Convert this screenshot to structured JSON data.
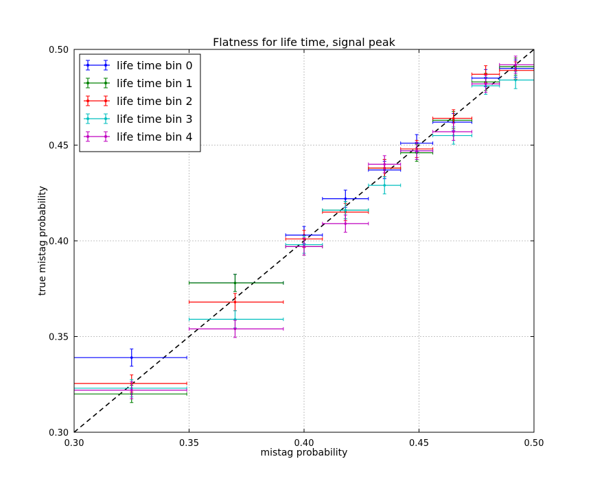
{
  "chart_data": {
    "type": "scatter",
    "title": "Flatness for life time, signal peak",
    "xlabel": "mistag probability",
    "ylabel": "true mistag probability",
    "xlim": [
      0.3,
      0.5
    ],
    "ylim": [
      0.3,
      0.5
    ],
    "xticks": [
      0.3,
      0.35,
      0.4,
      0.45,
      0.5
    ],
    "yticks": [
      0.3,
      0.35,
      0.4,
      0.45,
      0.5
    ],
    "xtick_labels": [
      "0.30",
      "0.35",
      "0.40",
      "0.45",
      "0.50"
    ],
    "ytick_labels": [
      "0.30",
      "0.35",
      "0.40",
      "0.45",
      "0.50"
    ],
    "grid": true,
    "legend_position": "top-left",
    "reference_line": {
      "style": "dashed",
      "color": "#000000",
      "from": [
        0.3,
        0.3
      ],
      "to": [
        0.5,
        0.5
      ]
    },
    "series": [
      {
        "name": "life time bin 0",
        "color": "#0000ff",
        "points": [
          {
            "x": 0.325,
            "y": 0.339,
            "xlo": 0.3,
            "xhi": 0.349,
            "yerr": 0.0045
          },
          {
            "x": 0.37,
            "y": 0.378,
            "xlo": 0.35,
            "xhi": 0.391,
            "yerr": 0.0045
          },
          {
            "x": 0.4,
            "y": 0.403,
            "xlo": 0.392,
            "xhi": 0.408,
            "yerr": 0.0045
          },
          {
            "x": 0.418,
            "y": 0.422,
            "xlo": 0.408,
            "xhi": 0.428,
            "yerr": 0.0045
          },
          {
            "x": 0.435,
            "y": 0.437,
            "xlo": 0.428,
            "xhi": 0.442,
            "yerr": 0.0045
          },
          {
            "x": 0.449,
            "y": 0.451,
            "xlo": 0.442,
            "xhi": 0.456,
            "yerr": 0.0045
          },
          {
            "x": 0.465,
            "y": 0.462,
            "xlo": 0.456,
            "xhi": 0.473,
            "yerr": 0.0045
          },
          {
            "x": 0.479,
            "y": 0.485,
            "xlo": 0.473,
            "xhi": 0.485,
            "yerr": 0.0045
          },
          {
            "x": 0.492,
            "y": 0.49,
            "xlo": 0.485,
            "xhi": 0.5,
            "yerr": 0.0045
          }
        ]
      },
      {
        "name": "life time bin 1",
        "color": "#008000",
        "points": [
          {
            "x": 0.325,
            "y": 0.32,
            "xlo": 0.3,
            "xhi": 0.349,
            "yerr": 0.0045
          },
          {
            "x": 0.37,
            "y": 0.378,
            "xlo": 0.35,
            "xhi": 0.391,
            "yerr": 0.0045
          },
          {
            "x": 0.4,
            "y": 0.397,
            "xlo": 0.392,
            "xhi": 0.408,
            "yerr": 0.0045
          },
          {
            "x": 0.418,
            "y": 0.416,
            "xlo": 0.408,
            "xhi": 0.428,
            "yerr": 0.0045
          },
          {
            "x": 0.435,
            "y": 0.438,
            "xlo": 0.428,
            "xhi": 0.442,
            "yerr": 0.0045
          },
          {
            "x": 0.449,
            "y": 0.446,
            "xlo": 0.442,
            "xhi": 0.456,
            "yerr": 0.0045
          },
          {
            "x": 0.465,
            "y": 0.463,
            "xlo": 0.456,
            "xhi": 0.473,
            "yerr": 0.0045
          },
          {
            "x": 0.479,
            "y": 0.483,
            "xlo": 0.473,
            "xhi": 0.485,
            "yerr": 0.0045
          },
          {
            "x": 0.492,
            "y": 0.491,
            "xlo": 0.485,
            "xhi": 0.5,
            "yerr": 0.0045
          }
        ]
      },
      {
        "name": "life time bin 2",
        "color": "#ff0000",
        "points": [
          {
            "x": 0.325,
            "y": 0.3255,
            "xlo": 0.3,
            "xhi": 0.349,
            "yerr": 0.0045
          },
          {
            "x": 0.37,
            "y": 0.368,
            "xlo": 0.35,
            "xhi": 0.391,
            "yerr": 0.0045
          },
          {
            "x": 0.4,
            "y": 0.401,
            "xlo": 0.392,
            "xhi": 0.408,
            "yerr": 0.0045
          },
          {
            "x": 0.418,
            "y": 0.415,
            "xlo": 0.408,
            "xhi": 0.428,
            "yerr": 0.0045
          },
          {
            "x": 0.435,
            "y": 0.438,
            "xlo": 0.428,
            "xhi": 0.442,
            "yerr": 0.0045
          },
          {
            "x": 0.449,
            "y": 0.448,
            "xlo": 0.442,
            "xhi": 0.456,
            "yerr": 0.0045
          },
          {
            "x": 0.465,
            "y": 0.464,
            "xlo": 0.456,
            "xhi": 0.473,
            "yerr": 0.0045
          },
          {
            "x": 0.479,
            "y": 0.487,
            "xlo": 0.473,
            "xhi": 0.485,
            "yerr": 0.0045
          },
          {
            "x": 0.492,
            "y": 0.489,
            "xlo": 0.485,
            "xhi": 0.5,
            "yerr": 0.0045
          }
        ]
      },
      {
        "name": "life time bin 3",
        "color": "#00bfbf",
        "points": [
          {
            "x": 0.325,
            "y": 0.323,
            "xlo": 0.3,
            "xhi": 0.349,
            "yerr": 0.0045
          },
          {
            "x": 0.37,
            "y": 0.359,
            "xlo": 0.35,
            "xhi": 0.391,
            "yerr": 0.0045
          },
          {
            "x": 0.4,
            "y": 0.398,
            "xlo": 0.392,
            "xhi": 0.408,
            "yerr": 0.0045
          },
          {
            "x": 0.418,
            "y": 0.416,
            "xlo": 0.408,
            "xhi": 0.428,
            "yerr": 0.0045
          },
          {
            "x": 0.435,
            "y": 0.429,
            "xlo": 0.428,
            "xhi": 0.442,
            "yerr": 0.0045
          },
          {
            "x": 0.449,
            "y": 0.447,
            "xlo": 0.442,
            "xhi": 0.456,
            "yerr": 0.0045
          },
          {
            "x": 0.465,
            "y": 0.455,
            "xlo": 0.456,
            "xhi": 0.473,
            "yerr": 0.0045
          },
          {
            "x": 0.479,
            "y": 0.481,
            "xlo": 0.473,
            "xhi": 0.485,
            "yerr": 0.0045
          },
          {
            "x": 0.492,
            "y": 0.484,
            "xlo": 0.485,
            "xhi": 0.5,
            "yerr": 0.0045
          }
        ]
      },
      {
        "name": "life time bin 4",
        "color": "#bf00bf",
        "points": [
          {
            "x": 0.325,
            "y": 0.322,
            "xlo": 0.3,
            "xhi": 0.349,
            "yerr": 0.0045
          },
          {
            "x": 0.37,
            "y": 0.354,
            "xlo": 0.35,
            "xhi": 0.391,
            "yerr": 0.0045
          },
          {
            "x": 0.4,
            "y": 0.397,
            "xlo": 0.392,
            "xhi": 0.408,
            "yerr": 0.0045
          },
          {
            "x": 0.418,
            "y": 0.409,
            "xlo": 0.408,
            "xhi": 0.428,
            "yerr": 0.0045
          },
          {
            "x": 0.435,
            "y": 0.44,
            "xlo": 0.428,
            "xhi": 0.442,
            "yerr": 0.0045
          },
          {
            "x": 0.449,
            "y": 0.447,
            "xlo": 0.442,
            "xhi": 0.456,
            "yerr": 0.0045
          },
          {
            "x": 0.465,
            "y": 0.457,
            "xlo": 0.456,
            "xhi": 0.473,
            "yerr": 0.0045
          },
          {
            "x": 0.479,
            "y": 0.482,
            "xlo": 0.473,
            "xhi": 0.485,
            "yerr": 0.0045
          },
          {
            "x": 0.492,
            "y": 0.492,
            "xlo": 0.485,
            "xhi": 0.5,
            "yerr": 0.0045
          }
        ]
      }
    ]
  }
}
